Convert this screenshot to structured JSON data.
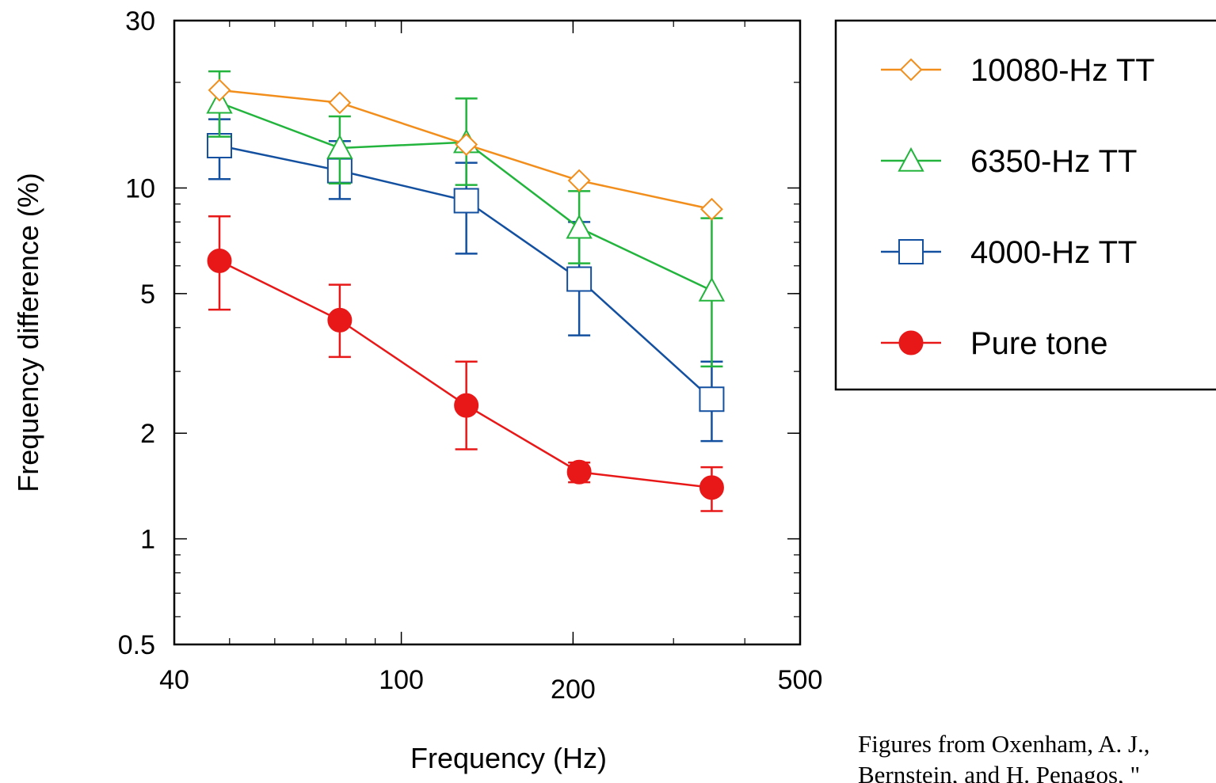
{
  "chart_data": {
    "type": "line",
    "xlabel": "Frequency (Hz)",
    "ylabel": "Frequency difference (%)",
    "x_scale": "log",
    "y_scale": "log",
    "xlim": [
      40,
      500
    ],
    "ylim": [
      0.5,
      30
    ],
    "x_ticks": [
      {
        "value": 40,
        "label": "40"
      },
      {
        "value": 100,
        "label": "100"
      },
      {
        "value": 200,
        "label": "200"
      },
      {
        "value": 500,
        "label": "500"
      }
    ],
    "y_ticks": [
      {
        "value": 0.5,
        "label": "0.5"
      },
      {
        "value": 1,
        "label": "1"
      },
      {
        "value": 2,
        "label": "2"
      },
      {
        "value": 5,
        "label": "5"
      },
      {
        "value": 10,
        "label": "10"
      },
      {
        "value": 30,
        "label": "30"
      }
    ],
    "x": [
      48,
      78,
      130,
      205,
      350
    ],
    "legend_position": "right, outside plot",
    "series": [
      {
        "name": "10080-Hz TT",
        "color": "#f28e1c",
        "marker": "diamond-open",
        "values": [
          19.0,
          17.5,
          13.3,
          10.5,
          8.7
        ]
      },
      {
        "name": "6350-Hz TT",
        "color": "#22b43c",
        "marker": "triangle-open",
        "values": [
          17.5,
          13.0,
          13.5,
          7.7,
          5.1
        ],
        "errors": [
          [
            14.0,
            21.5
          ],
          [
            10.3,
            16.0
          ],
          [
            10.2,
            18.0
          ],
          [
            6.1,
            9.8
          ],
          [
            3.1,
            8.2
          ]
        ]
      },
      {
        "name": "4000-Hz TT",
        "color": "#1450a0",
        "marker": "square-open",
        "values": [
          13.2,
          11.2,
          9.2,
          5.5,
          2.5
        ],
        "errors": [
          [
            10.6,
            15.7
          ],
          [
            9.3,
            13.6
          ],
          [
            6.5,
            11.8
          ],
          [
            3.8,
            8.0
          ],
          [
            1.9,
            3.2
          ]
        ]
      },
      {
        "name": "Pure tone",
        "color": "#e81818",
        "marker": "circle-filled",
        "values": [
          6.2,
          4.2,
          2.4,
          1.55,
          1.4
        ],
        "errors": [
          [
            4.5,
            8.3
          ],
          [
            3.3,
            5.3
          ],
          [
            1.8,
            3.2
          ],
          [
            1.45,
            1.65
          ],
          [
            1.2,
            1.6
          ]
        ]
      }
    ]
  },
  "citation": {
    "line1": "Figures from Oxenham, A. J.,",
    "line2": "Bernstein, and H. Penagos, \""
  }
}
